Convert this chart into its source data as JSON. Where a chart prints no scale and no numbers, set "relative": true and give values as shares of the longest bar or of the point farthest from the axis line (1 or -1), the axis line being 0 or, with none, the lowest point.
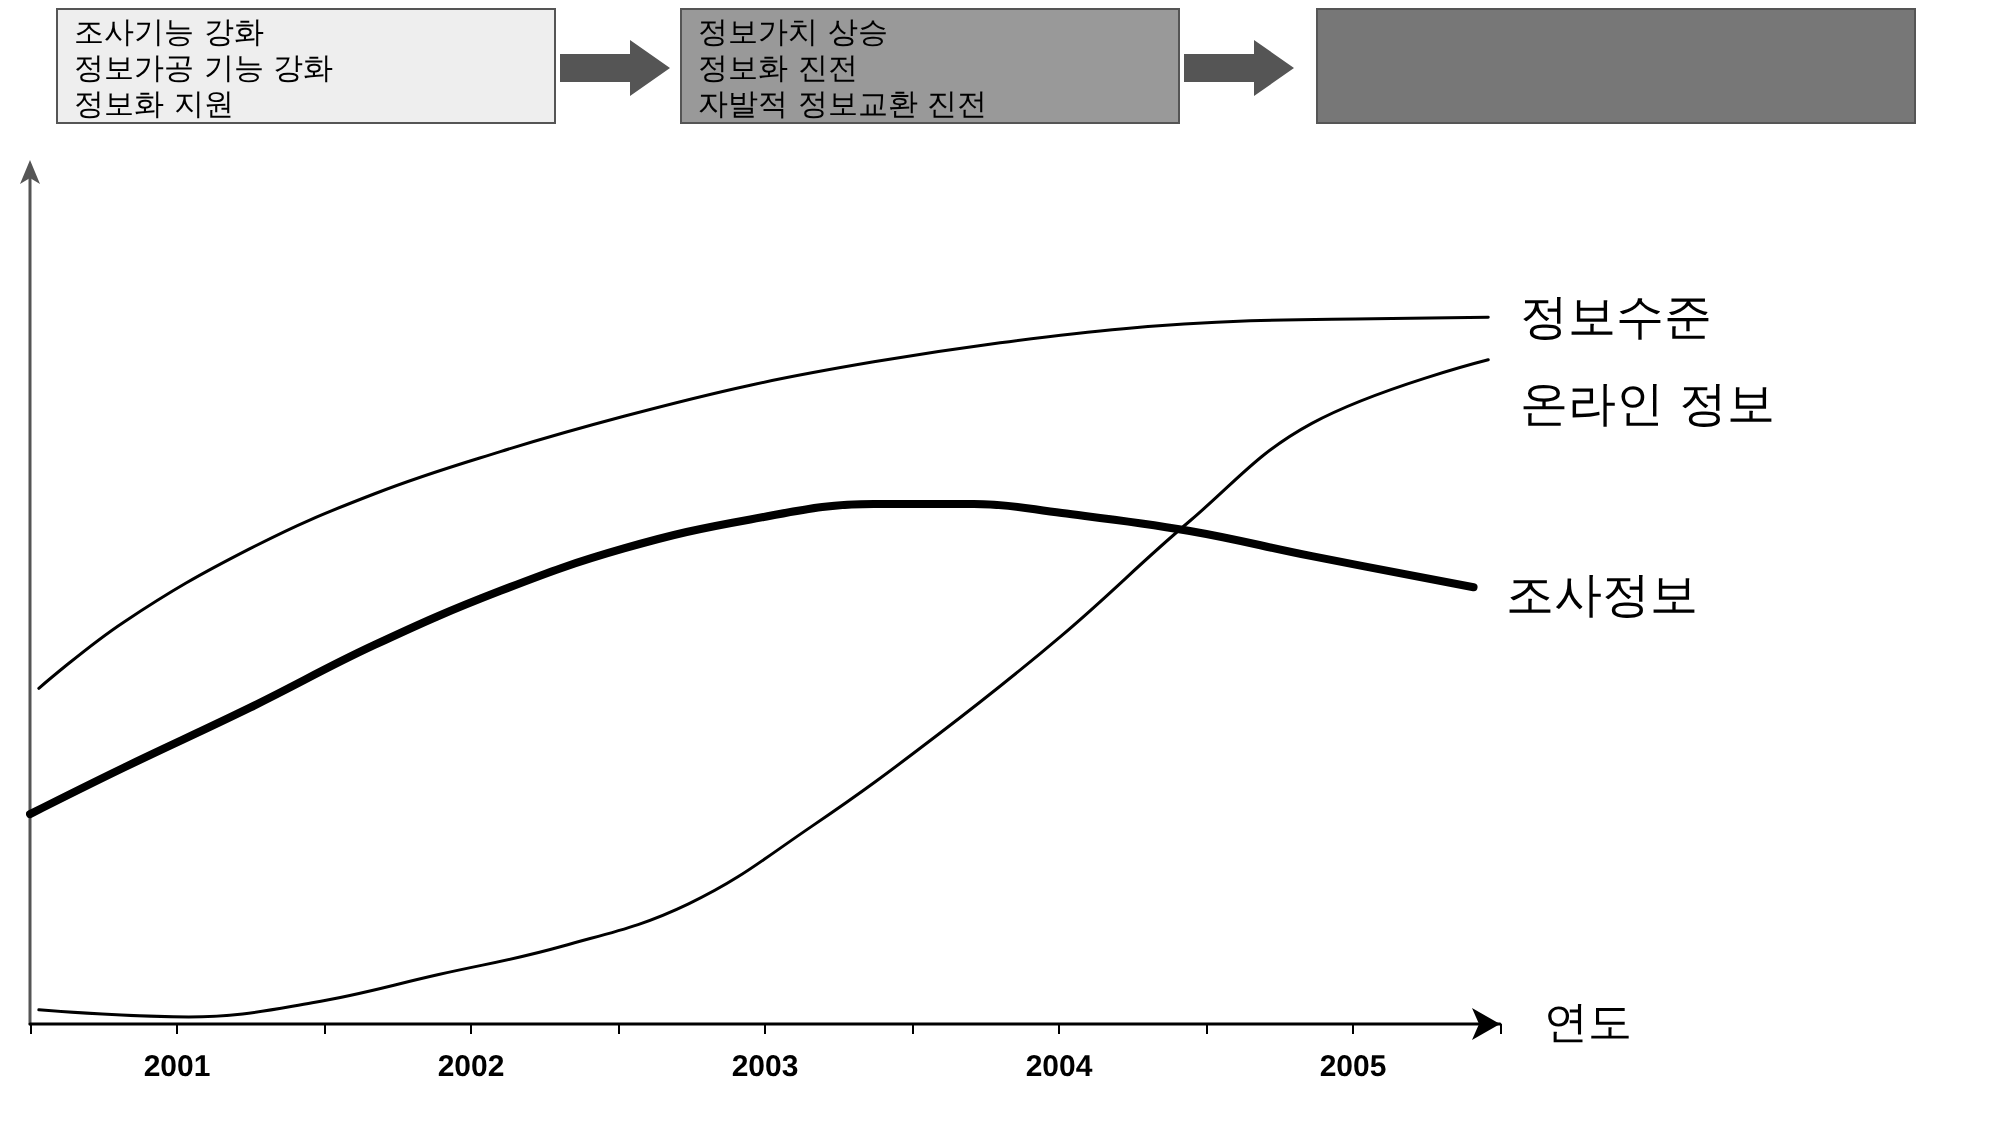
{
  "chart_data": {
    "type": "line",
    "relative": true,
    "xlabel": "연도",
    "annotations": [
      "조사기능 강화\n정보가공 기능 강화\n정보화 지원",
      "정보가치 상승\n정보화 진전\n자발적 정보교환 진전"
    ],
    "xlim": [
      2000.5,
      2005.5
    ],
    "xticks": [
      {
        "value": 2000.5,
        "label": null
      },
      2001,
      {
        "value": 2001.5,
        "label": null
      },
      2002,
      {
        "value": 2002.5,
        "label": null
      },
      2003,
      {
        "value": 2003.5,
        "label": null
      },
      2004,
      {
        "value": 2004.5,
        "label": null
      },
      2005,
      {
        "value": 2005.5,
        "label": null
      }
    ],
    "grid": false,
    "legend": false,
    "marker": "none",
    "line_style": "solid",
    "series": [
      {
        "name": "정보수준",
        "color": "#000000",
        "x": [
          2000.53,
          2000.82,
          2001.25,
          2001.67,
          2002.1,
          2002.52,
          2002.95,
          2003.37,
          2003.8,
          2004.22,
          2004.65,
          2005.07,
          2005.46
        ],
        "values": [
          0.475,
          0.569,
          0.673,
          0.75,
          0.81,
          0.86,
          0.904,
          0.937,
          0.964,
          0.984,
          0.995,
          0.998,
          1.0
        ]
      },
      {
        "name": "온라인 정보",
        "color": "#000000",
        "x": [
          2000.53,
          2001.04,
          2001.46,
          2001.89,
          2002.31,
          2002.74,
          2003.16,
          2003.59,
          2004.01,
          2004.44,
          2004.86,
          2005.46
        ],
        "values": [
          0.02,
          0.01,
          0.03,
          0.07,
          0.11,
          0.17,
          0.28,
          0.41,
          0.55,
          0.71,
          0.85,
          0.94
        ]
      },
      {
        "name": "조사정보",
        "color": "#000000",
        "x": [
          2000.5,
          2000.82,
          2001.25,
          2001.67,
          2002.1,
          2002.52,
          2002.95,
          2003.37,
          2003.71,
          2004.01,
          2004.44,
          2004.86,
          2005.41
        ],
        "values": [
          0.297,
          0.363,
          0.448,
          0.536,
          0.613,
          0.673,
          0.714,
          0.736,
          0.736,
          0.723,
          0.698,
          0.662,
          0.618
        ]
      }
    ]
  }
}
